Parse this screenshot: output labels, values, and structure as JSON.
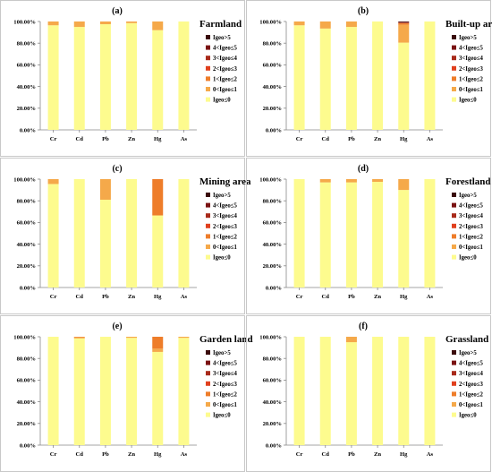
{
  "figure": {
    "legend_items": [
      "Igeo>5",
      "4<Igeo≤5",
      "3<Igeo≤4",
      "2<Igeo≤3",
      "1<Igeo≤2",
      "0<Igeo≤1",
      "Igeo≤0"
    ],
    "legend_colors": [
      "#3a0a0a",
      "#7a1212",
      "#a82a1a",
      "#e0401e",
      "#ee7d2a",
      "#f5a94a",
      "#fdfb8e"
    ]
  },
  "chart_data": [
    {
      "type": "bar",
      "stacked": true,
      "title": "(a)",
      "land_use": "Farmland",
      "categories": [
        "Cr",
        "Cd",
        "Pb",
        "Zn",
        "Hg",
        "As"
      ],
      "yticks": [
        "0.00%",
        "20.00%",
        "40.00%",
        "60.00%",
        "80.00%",
        "100.00%"
      ],
      "ylim": [
        0,
        100
      ],
      "grid": false,
      "legend_position": "right",
      "series": [
        {
          "name": "Igeo≤0",
          "values": [
            96.5,
            95.0,
            97.5,
            98.5,
            92.0,
            100
          ]
        },
        {
          "name": "0<Igeo≤1",
          "values": [
            3.5,
            5.0,
            2.5,
            1.5,
            8.0,
            0
          ]
        },
        {
          "name": "1<Igeo≤2",
          "values": [
            0,
            0,
            0,
            0,
            0,
            0
          ]
        },
        {
          "name": "2<Igeo≤3",
          "values": [
            0,
            0,
            0,
            0,
            0,
            0
          ]
        },
        {
          "name": "3<Igeo≤4",
          "values": [
            0,
            0,
            0,
            0,
            0,
            0
          ]
        },
        {
          "name": "4<Igeo≤5",
          "values": [
            0,
            0,
            0,
            0,
            0,
            0
          ]
        },
        {
          "name": "Igeo>5",
          "values": [
            0,
            0,
            0,
            0,
            0,
            0
          ]
        }
      ]
    },
    {
      "type": "bar",
      "stacked": true,
      "title": "(b)",
      "land_use": "Built-up area",
      "categories": [
        "Cr",
        "Cd",
        "Pb",
        "Zn",
        "Hg",
        "As"
      ],
      "yticks": [
        "0.00%",
        "20.00%",
        "40.00%",
        "60.00%",
        "80.00%",
        "100.00%"
      ],
      "ylim": [
        0,
        100
      ],
      "grid": false,
      "legend_position": "right",
      "series": [
        {
          "name": "Igeo≤0",
          "values": [
            96.5,
            93.5,
            95.0,
            100,
            80.5,
            100
          ]
        },
        {
          "name": "0<Igeo≤1",
          "values": [
            3.5,
            6.5,
            5.0,
            0,
            16.5,
            0
          ]
        },
        {
          "name": "1<Igeo≤2",
          "values": [
            0,
            0,
            0,
            0,
            1.5,
            0
          ]
        },
        {
          "name": "2<Igeo≤3",
          "values": [
            0,
            0,
            0,
            0,
            0,
            0
          ]
        },
        {
          "name": "3<Igeo≤4",
          "values": [
            0,
            0,
            0,
            0,
            0.5,
            0
          ]
        },
        {
          "name": "4<Igeo≤5",
          "values": [
            0,
            0,
            0,
            0,
            0.5,
            0
          ]
        },
        {
          "name": "Igeo>5",
          "values": [
            0,
            0,
            0,
            0,
            0.5,
            0
          ]
        }
      ]
    },
    {
      "type": "bar",
      "stacked": true,
      "title": "(c)",
      "land_use": "Mining area",
      "categories": [
        "Cr",
        "Cd",
        "Pb",
        "Zn",
        "Hg",
        "As"
      ],
      "yticks": [
        "0.00%",
        "20.00%",
        "40.00%",
        "60.00%",
        "80.00%",
        "100.00%"
      ],
      "ylim": [
        0,
        100
      ],
      "grid": false,
      "legend_position": "right",
      "series": [
        {
          "name": "Igeo≤0",
          "values": [
            95.5,
            100,
            81.0,
            100,
            66.5,
            100
          ]
        },
        {
          "name": "0<Igeo≤1",
          "values": [
            4.5,
            0,
            19.0,
            0,
            0,
            0
          ]
        },
        {
          "name": "1<Igeo≤2",
          "values": [
            0,
            0,
            0,
            0,
            33.5,
            0
          ]
        },
        {
          "name": "2<Igeo≤3",
          "values": [
            0,
            0,
            0,
            0,
            0,
            0
          ]
        },
        {
          "name": "3<Igeo≤4",
          "values": [
            0,
            0,
            0,
            0,
            0,
            0
          ]
        },
        {
          "name": "4<Igeo≤5",
          "values": [
            0,
            0,
            0,
            0,
            0,
            0
          ]
        },
        {
          "name": "Igeo>5",
          "values": [
            0,
            0,
            0,
            0,
            0,
            0
          ]
        }
      ]
    },
    {
      "type": "bar",
      "stacked": true,
      "title": "(d)",
      "land_use": "Forestland",
      "categories": [
        "Cr",
        "Cd",
        "Pb",
        "Zn",
        "Hg",
        "As"
      ],
      "yticks": [
        "0.00%",
        "20.00%",
        "40.00%",
        "60.00%",
        "80.00%",
        "100.00%"
      ],
      "ylim": [
        0,
        100
      ],
      "grid": false,
      "legend_position": "right",
      "series": [
        {
          "name": "Igeo≤0",
          "values": [
            100,
            97.0,
            97.0,
            97.5,
            90.0,
            100
          ]
        },
        {
          "name": "0<Igeo≤1",
          "values": [
            0,
            3.0,
            3.0,
            2.5,
            10.0,
            0
          ]
        },
        {
          "name": "1<Igeo≤2",
          "values": [
            0,
            0,
            0,
            0,
            0,
            0
          ]
        },
        {
          "name": "2<Igeo≤3",
          "values": [
            0,
            0,
            0,
            0,
            0,
            0
          ]
        },
        {
          "name": "3<Igeo≤4",
          "values": [
            0,
            0,
            0,
            0,
            0,
            0
          ]
        },
        {
          "name": "4<Igeo≤5",
          "values": [
            0,
            0,
            0,
            0,
            0,
            0
          ]
        },
        {
          "name": "Igeo>5",
          "values": [
            0,
            0,
            0,
            0,
            0,
            0
          ]
        }
      ]
    },
    {
      "type": "bar",
      "stacked": true,
      "title": "(e)",
      "land_use": "Garden land",
      "categories": [
        "Cr",
        "Cd",
        "Pb",
        "Zn",
        "Hg",
        "As"
      ],
      "yticks": [
        "0.00%",
        "20.00%",
        "40.00%",
        "60.00%",
        "80.00%",
        "100.00%"
      ],
      "ylim": [
        0,
        100
      ],
      "grid": false,
      "legend_position": "right",
      "series": [
        {
          "name": "Igeo≤0",
          "values": [
            100,
            98.5,
            100,
            99.0,
            86.0,
            99.0
          ]
        },
        {
          "name": "0<Igeo≤1",
          "values": [
            0,
            1.0,
            0,
            1.0,
            3.0,
            1.0
          ]
        },
        {
          "name": "1<Igeo≤2",
          "values": [
            0,
            0.5,
            0,
            0,
            11.0,
            0
          ]
        },
        {
          "name": "2<Igeo≤3",
          "values": [
            0,
            0,
            0,
            0,
            0,
            0
          ]
        },
        {
          "name": "3<Igeo≤4",
          "values": [
            0,
            0,
            0,
            0,
            0,
            0
          ]
        },
        {
          "name": "4<Igeo≤5",
          "values": [
            0,
            0,
            0,
            0,
            0,
            0
          ]
        },
        {
          "name": "Igeo>5",
          "values": [
            0,
            0,
            0,
            0,
            0,
            0
          ]
        }
      ]
    },
    {
      "type": "bar",
      "stacked": true,
      "title": "(f)",
      "land_use": "Grassland",
      "categories": [
        "Cr",
        "Cd",
        "Pb",
        "Zn",
        "Hg",
        "As"
      ],
      "yticks": [
        "0.00%",
        "20.00%",
        "40.00%",
        "60.00%",
        "80.00%",
        "100.00%"
      ],
      "ylim": [
        0,
        100
      ],
      "grid": false,
      "legend_position": "right",
      "series": [
        {
          "name": "Igeo≤0",
          "values": [
            100,
            100,
            95.0,
            100,
            100,
            100
          ]
        },
        {
          "name": "0<Igeo≤1",
          "values": [
            0,
            0,
            5.0,
            0,
            0,
            0
          ]
        },
        {
          "name": "1<Igeo≤2",
          "values": [
            0,
            0,
            0,
            0,
            0,
            0
          ]
        },
        {
          "name": "2<Igeo≤3",
          "values": [
            0,
            0,
            0,
            0,
            0,
            0
          ]
        },
        {
          "name": "3<Igeo≤4",
          "values": [
            0,
            0,
            0,
            0,
            0,
            0
          ]
        },
        {
          "name": "4<Igeo≤5",
          "values": [
            0,
            0,
            0,
            0,
            0,
            0
          ]
        },
        {
          "name": "Igeo>5",
          "values": [
            0,
            0,
            0,
            0,
            0,
            0
          ]
        }
      ]
    }
  ]
}
